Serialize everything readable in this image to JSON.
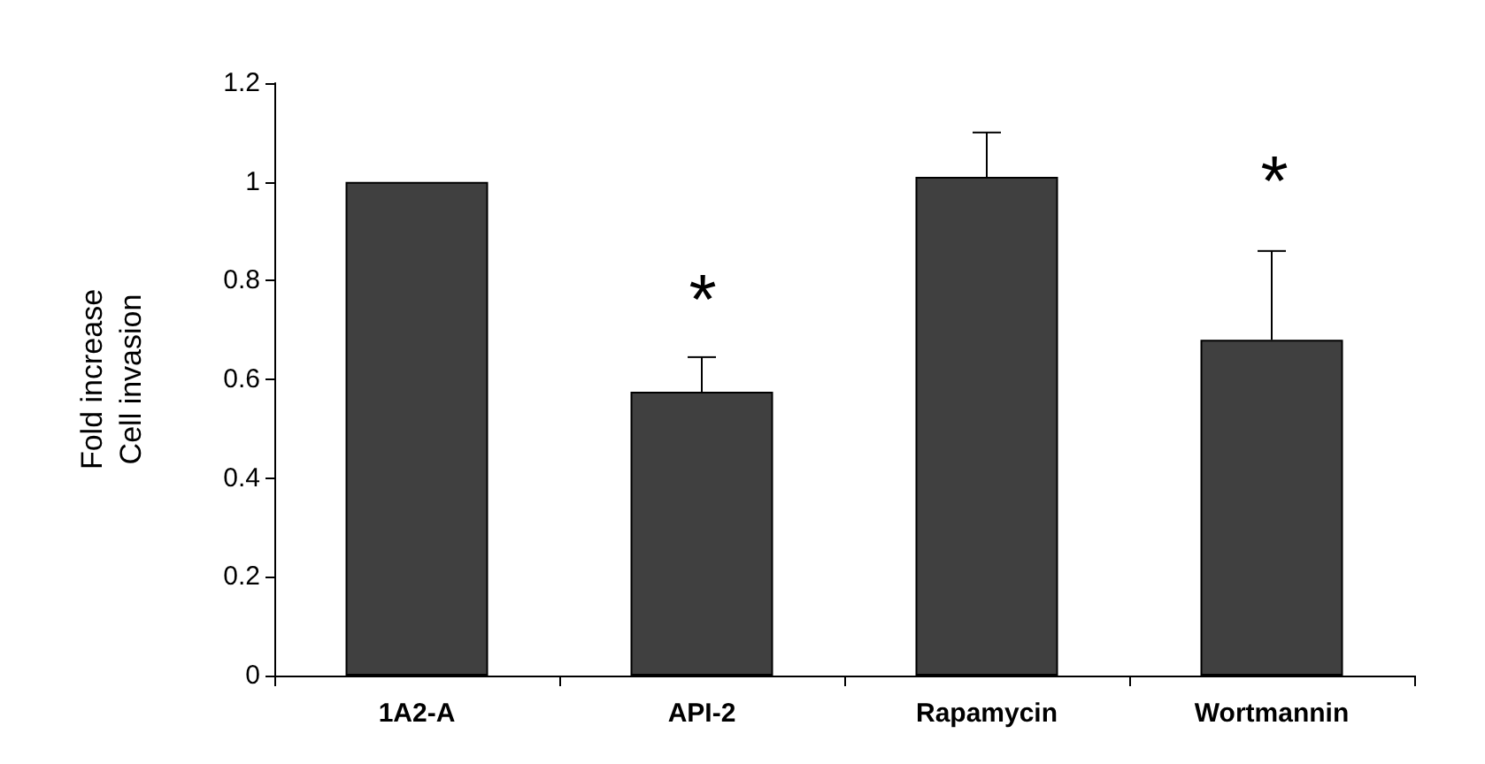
{
  "chart_data": {
    "type": "bar",
    "ylabel": "Fold increase\nCell invasion",
    "categories": [
      "1A2-A",
      "API-2",
      "Rapamycin",
      "Wortmannin"
    ],
    "values": [
      1.0,
      0.575,
      1.01,
      0.68
    ],
    "color": "#404040",
    "errors": [
      null,
      [
        0.575,
        0.645
      ],
      [
        1.01,
        1.1
      ],
      [
        0.68,
        0.86
      ]
    ],
    "ylim": [
      0,
      1.2
    ],
    "yticks": [
      0,
      0.2,
      0.4,
      0.6,
      0.8,
      1,
      1.2
    ],
    "grid": false,
    "annotations": [
      "*",
      "*"
    ]
  }
}
